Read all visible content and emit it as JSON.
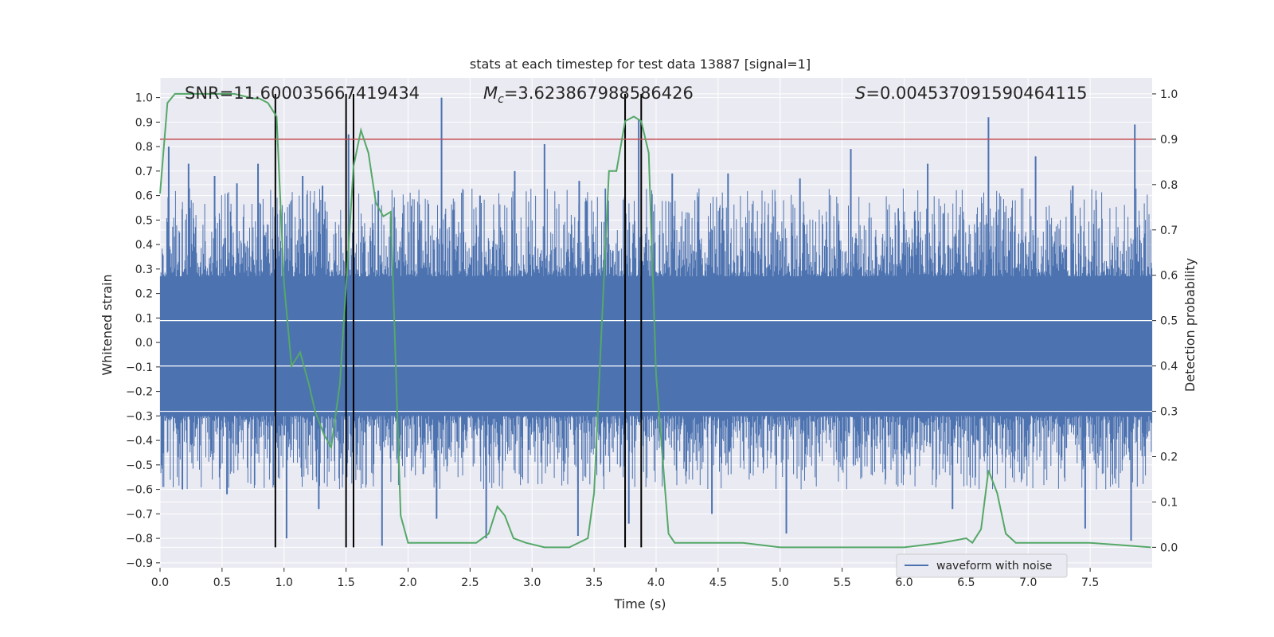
{
  "chart_data": {
    "type": "line",
    "title": "stats at each timestep for test data 13887 [signal=1]",
    "xlabel": "Time (s)",
    "ylabel": "Whitened strain",
    "y2label": "Detection probability",
    "xlim": [
      0.0,
      8.0
    ],
    "ylim": [
      -0.92,
      1.08
    ],
    "y2lim": [
      -0.045,
      1.035
    ],
    "x_ticks": [
      0.0,
      0.5,
      1.0,
      1.5,
      2.0,
      2.5,
      3.0,
      3.5,
      4.0,
      4.5,
      5.0,
      5.5,
      6.0,
      6.5,
      7.0,
      7.5
    ],
    "x_tick_labels": [
      "0.0",
      "0.5",
      "1.0",
      "1.5",
      "2.0",
      "2.5",
      "3.0",
      "3.5",
      "4.0",
      "4.5",
      "5.0",
      "5.5",
      "6.0",
      "6.5",
      "7.0",
      "7.5"
    ],
    "y_ticks": [
      -0.9,
      -0.8,
      -0.7,
      -0.6,
      -0.5,
      -0.4,
      -0.3,
      -0.2,
      -0.1,
      0.0,
      0.1,
      0.2,
      0.3,
      0.4,
      0.5,
      0.6,
      0.7,
      0.8,
      0.9,
      1.0
    ],
    "y_tick_labels": [
      "−0.9",
      "−0.8",
      "−0.7",
      "−0.6",
      "−0.5",
      "−0.4",
      "−0.3",
      "−0.2",
      "−0.1",
      "0.0",
      "0.1",
      "0.2",
      "0.3",
      "0.4",
      "0.5",
      "0.6",
      "0.7",
      "0.8",
      "0.9",
      "1.0"
    ],
    "y2_ticks": [
      0.0,
      0.1,
      0.2,
      0.3,
      0.4,
      0.5,
      0.6,
      0.7,
      0.8,
      0.9,
      1.0
    ],
    "y2_tick_labels": [
      "0.0",
      "0.1",
      "0.2",
      "0.3",
      "0.4",
      "0.5",
      "0.6",
      "0.7",
      "0.8",
      "0.9",
      "1.0"
    ],
    "grid": true,
    "legend": {
      "entries": [
        "waveform with noise"
      ],
      "placement": "lower-right"
    },
    "annotations": {
      "snr": "SNR=11.600035667419434",
      "mc_symbol": "M",
      "mc_sub": "c",
      "mc_value": "=3.623867988586426",
      "s_symbol": "S",
      "s_value": "=0.004537091590464115"
    },
    "threshold": {
      "axis": "y2",
      "value": 0.9,
      "color": "#c44e52"
    },
    "vertical_lines": [
      0.93,
      1.5,
      1.56,
      3.75,
      3.88
    ],
    "series": [
      {
        "name": "waveform with noise",
        "axis": "y",
        "color": "#4c72b0",
        "kind": "noise",
        "band": [
          -0.3,
          0.27
        ],
        "spikes": [
          [
            0.07,
            0.8
          ],
          [
            0.23,
            0.73
          ],
          [
            0.44,
            0.68
          ],
          [
            0.62,
            0.65
          ],
          [
            0.79,
            0.73
          ],
          [
            1.15,
            0.68
          ],
          [
            1.31,
            0.64
          ],
          [
            1.52,
            0.85
          ],
          [
            1.76,
            0.62
          ],
          [
            2.27,
            1.0
          ],
          [
            2.58,
            0.6
          ],
          [
            2.86,
            0.7
          ],
          [
            3.1,
            0.81
          ],
          [
            3.38,
            0.66
          ],
          [
            3.86,
            0.91
          ],
          [
            4.13,
            0.69
          ],
          [
            4.58,
            0.69
          ],
          [
            5.16,
            0.67
          ],
          [
            5.57,
            0.79
          ],
          [
            6.19,
            0.73
          ],
          [
            6.68,
            0.92
          ],
          [
            7.06,
            0.76
          ],
          [
            7.36,
            0.64
          ],
          [
            7.86,
            0.89
          ],
          [
            0.18,
            -0.6
          ],
          [
            0.54,
            -0.62
          ],
          [
            1.02,
            -0.8
          ],
          [
            1.28,
            -0.68
          ],
          [
            1.79,
            -0.83
          ],
          [
            2.23,
            -0.72
          ],
          [
            2.63,
            -0.8
          ],
          [
            3.37,
            -0.79
          ],
          [
            3.78,
            -0.74
          ],
          [
            4.45,
            -0.7
          ],
          [
            5.05,
            -0.78
          ],
          [
            6.39,
            -0.68
          ],
          [
            7.46,
            -0.76
          ],
          [
            7.83,
            -0.81
          ]
        ]
      },
      {
        "name": "",
        "axis": "y2",
        "color": "#55a868",
        "x": [
          0.0,
          0.06,
          0.12,
          0.2,
          0.3,
          0.45,
          0.6,
          0.75,
          0.8,
          0.87,
          0.94,
          1.0,
          1.06,
          1.13,
          1.2,
          1.25,
          1.32,
          1.38,
          1.45,
          1.51,
          1.56,
          1.62,
          1.68,
          1.74,
          1.8,
          1.86,
          1.94,
          2.0,
          2.2,
          2.4,
          2.55,
          2.65,
          2.72,
          2.78,
          2.85,
          2.95,
          3.1,
          3.3,
          3.45,
          3.5,
          3.56,
          3.62,
          3.68,
          3.75,
          3.82,
          3.88,
          3.94,
          4.0,
          4.1,
          4.15,
          4.4,
          4.6,
          4.7,
          5.0,
          5.5,
          6.0,
          6.3,
          6.5,
          6.55,
          6.62,
          6.68,
          6.75,
          6.82,
          6.9,
          7.1,
          7.5,
          7.99
        ],
        "y": [
          0.78,
          0.98,
          1.0,
          1.0,
          1.0,
          1.0,
          1.0,
          0.99,
          0.99,
          0.98,
          0.95,
          0.58,
          0.4,
          0.43,
          0.36,
          0.3,
          0.25,
          0.22,
          0.36,
          0.62,
          0.84,
          0.92,
          0.87,
          0.76,
          0.73,
          0.74,
          0.07,
          0.01,
          0.01,
          0.01,
          0.01,
          0.03,
          0.09,
          0.07,
          0.02,
          0.01,
          0.0,
          0.0,
          0.02,
          0.12,
          0.48,
          0.83,
          0.83,
          0.94,
          0.95,
          0.94,
          0.87,
          0.38,
          0.03,
          0.01,
          0.01,
          0.01,
          0.01,
          0.0,
          0.0,
          0.0,
          0.01,
          0.02,
          0.01,
          0.04,
          0.17,
          0.12,
          0.03,
          0.01,
          0.01,
          0.01,
          0.0
        ]
      }
    ]
  }
}
